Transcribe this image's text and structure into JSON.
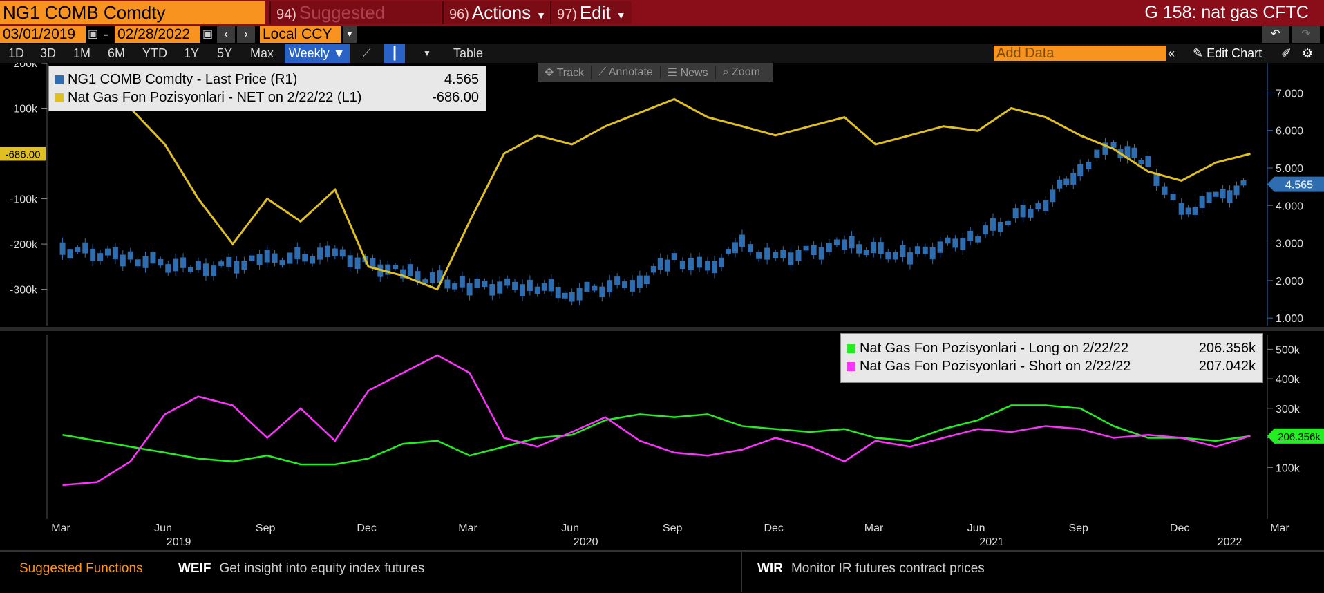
{
  "header": {
    "ticker": "NG1 COMB Comdty",
    "suggested": {
      "num": "94)",
      "label": "Suggested Charts"
    },
    "actions": {
      "num": "96)",
      "label": "Actions"
    },
    "edit": {
      "num": "97)",
      "label": "Edit"
    },
    "title_right": "G 158: nat gas CFTC"
  },
  "dates": {
    "start": "03/01/2019",
    "sep": "-",
    "end": "02/28/2022",
    "currency": "Local CCY"
  },
  "ranges": [
    "1D",
    "3D",
    "1M",
    "6M",
    "YTD",
    "1Y",
    "5Y",
    "Max"
  ],
  "frequency": "Weekly",
  "table_label": "Table",
  "add_data_placeholder": "Add Data",
  "edit_chart_label": "Edit Chart",
  "float_toolbar": [
    "Track",
    "Annotate",
    "News",
    "Zoom"
  ],
  "colors": {
    "price": "#2e6db0",
    "net": "#e0c020",
    "long": "#22ee22",
    "short": "#ff33ff"
  },
  "footer": {
    "label": "Suggested Functions",
    "f1_code": "WEIF",
    "f1_desc": "Get insight into equity index futures",
    "f2_code": "WIR",
    "f2_desc": "Monitor IR futures contract prices"
  },
  "chart_data": {
    "type": "line",
    "x_ticks": [
      "Mar",
      "Jun",
      "Sep",
      "Dec",
      "Mar",
      "Jun",
      "Sep",
      "Dec",
      "Mar",
      "Jun",
      "Sep",
      "Dec",
      "Mar"
    ],
    "year_labels": [
      "2019",
      "2020",
      "2021",
      "2022"
    ],
    "upper": {
      "left_axis_ticks": [
        "200k",
        "100k",
        "-100k",
        "-200k",
        "-300k"
      ],
      "right_axis_ticks": [
        "7.000",
        "6.000",
        "5.000",
        "4.000",
        "3.000",
        "2.000",
        "1.000"
      ],
      "left_range": [
        -380000,
        200000
      ],
      "right_range": [
        0.8,
        7.8
      ],
      "legend": [
        {
          "name": "NG1 COMB Comdty - Last Price (R1)",
          "value": "4.565"
        },
        {
          "name": "Nat Gas Fon Pozisyonlari - NET on 2/22/22 (L1)",
          "value": "-686.00"
        }
      ],
      "last_price_tag": "4.565",
      "net_tag": "-686.00",
      "price_dates": [
        "2019-03",
        "2019-05",
        "2019-07",
        "2019-09",
        "2019-11",
        "2020-01",
        "2020-03",
        "2020-05",
        "2020-06",
        "2020-08",
        "2020-09",
        "2020-10",
        "2020-11",
        "2020-12",
        "2021-02",
        "2021-04",
        "2021-06",
        "2021-08",
        "2021-09",
        "2021-10",
        "2021-11",
        "2021-12",
        "2022-01",
        "2022-02"
      ],
      "price_values": [
        2.85,
        2.6,
        2.3,
        2.55,
        2.7,
        2.2,
        1.85,
        1.85,
        1.65,
        2.0,
        2.6,
        2.3,
        2.95,
        2.6,
        2.95,
        2.65,
        3.2,
        4.1,
        5.0,
        5.6,
        5.1,
        3.8,
        4.2,
        4.565
      ],
      "net_dates": [
        "2019-03",
        "2019-04",
        "2019-05",
        "2019-06",
        "2019-07",
        "2019-08",
        "2019-09",
        "2019-10",
        "2019-11",
        "2019-12",
        "2020-01",
        "2020-02",
        "2020-03",
        "2020-04",
        "2020-05",
        "2020-06",
        "2020-07",
        "2020-08",
        "2020-09",
        "2020-10",
        "2020-11",
        "2020-12",
        "2021-01",
        "2021-02",
        "2021-03",
        "2021-04",
        "2021-05",
        "2021-06",
        "2021-07",
        "2021-08",
        "2021-09",
        "2021-10",
        "2021-11",
        "2021-12",
        "2022-01",
        "2022-02"
      ],
      "net_values": [
        170000,
        150000,
        100000,
        20000,
        -100000,
        -200000,
        -100000,
        -150000,
        -80000,
        -250000,
        -270000,
        -300000,
        -150000,
        0,
        40000,
        20000,
        60000,
        90000,
        120000,
        80000,
        60000,
        40000,
        60000,
        80000,
        20000,
        40000,
        60000,
        50000,
        100000,
        80000,
        40000,
        10000,
        -40000,
        -60000,
        -20000,
        -686
      ]
    },
    "lower": {
      "right_axis_ticks": [
        "500k",
        "400k",
        "300k",
        "200k",
        "100k"
      ],
      "range": [
        0,
        550000
      ],
      "legend": [
        {
          "name": "Nat Gas Fon Pozisyonlari - Long on 2/22/22",
          "value": "206.356k"
        },
        {
          "name": "Nat Gas Fon Pozisyonlari - Short on 2/22/22",
          "value": "207.042k"
        }
      ],
      "long_tag": "206.356k",
      "dates": [
        "2019-03",
        "2019-04",
        "2019-05",
        "2019-06",
        "2019-07",
        "2019-08",
        "2019-09",
        "2019-10",
        "2019-11",
        "2019-12",
        "2020-01",
        "2020-02",
        "2020-03",
        "2020-04",
        "2020-05",
        "2020-06",
        "2020-07",
        "2020-08",
        "2020-09",
        "2020-10",
        "2020-11",
        "2020-12",
        "2021-01",
        "2021-02",
        "2021-03",
        "2021-04",
        "2021-05",
        "2021-06",
        "2021-07",
        "2021-08",
        "2021-09",
        "2021-10",
        "2021-11",
        "2021-12",
        "2022-01",
        "2022-02"
      ],
      "long": [
        210000,
        190000,
        170000,
        150000,
        130000,
        120000,
        140000,
        110000,
        110000,
        130000,
        180000,
        190000,
        140000,
        170000,
        200000,
        210000,
        260000,
        280000,
        270000,
        280000,
        240000,
        230000,
        220000,
        230000,
        200000,
        190000,
        230000,
        260000,
        310000,
        310000,
        300000,
        240000,
        200000,
        200000,
        190000,
        206356
      ],
      "short": [
        40000,
        50000,
        120000,
        280000,
        340000,
        310000,
        200000,
        300000,
        190000,
        360000,
        420000,
        480000,
        420000,
        200000,
        170000,
        220000,
        270000,
        190000,
        150000,
        140000,
        160000,
        200000,
        170000,
        120000,
        190000,
        170000,
        200000,
        230000,
        220000,
        240000,
        230000,
        200000,
        210000,
        200000,
        170000,
        207042
      ]
    }
  }
}
